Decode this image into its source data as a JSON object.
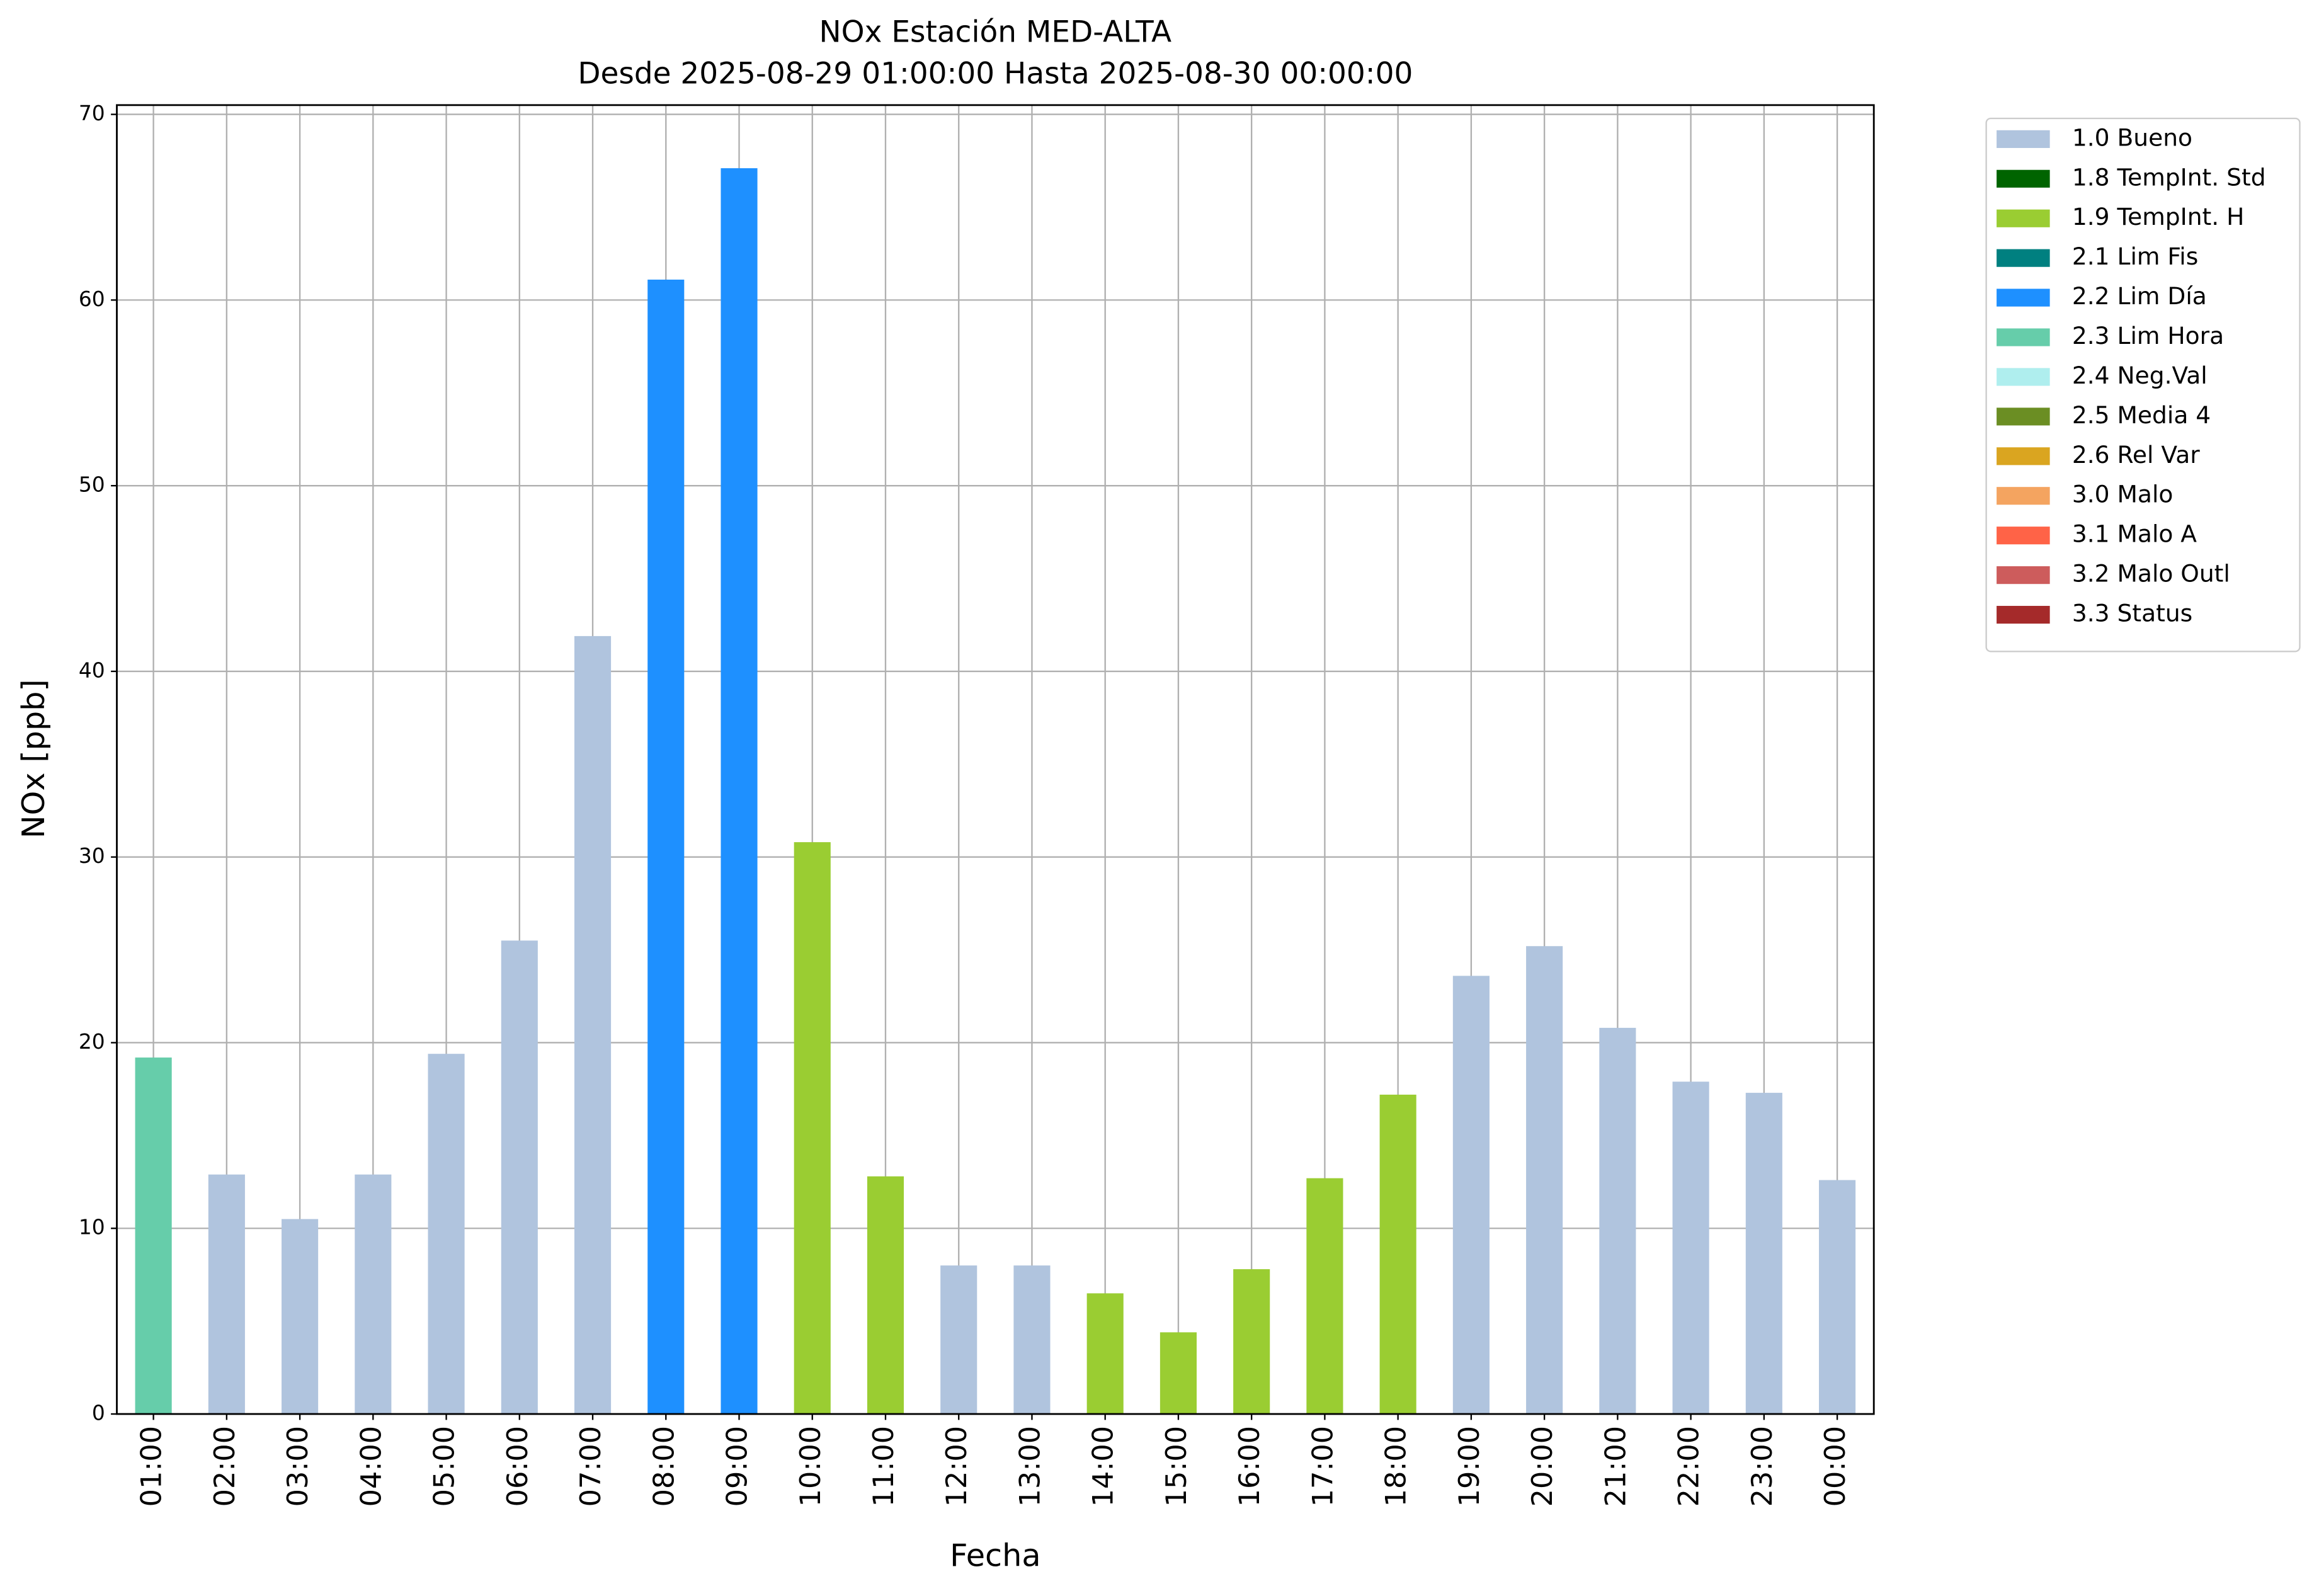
{
  "chart_data": {
    "type": "bar",
    "stacked": true,
    "title": "NOx Estación MED-ALTA",
    "subtitle": "Desde 2025-08-29 01:00:00 Hasta 2025-08-30 00:00:00",
    "xlabel": "Fecha",
    "ylabel": "NOx [ppb]",
    "categories": [
      "01:00",
      "02:00",
      "03:00",
      "04:00",
      "05:00",
      "06:00",
      "07:00",
      "08:00",
      "09:00",
      "10:00",
      "11:00",
      "12:00",
      "13:00",
      "14:00",
      "15:00",
      "16:00",
      "17:00",
      "18:00",
      "19:00",
      "20:00",
      "21:00",
      "22:00",
      "23:00",
      "00:00"
    ],
    "series": [
      {
        "name": "1.0 Bueno",
        "color": "#b0c4de",
        "values": [
          null,
          12.9,
          10.5,
          12.9,
          19.4,
          25.5,
          41.9,
          null,
          null,
          null,
          null,
          8.0,
          8.0,
          null,
          null,
          null,
          null,
          null,
          23.6,
          25.2,
          20.8,
          17.9,
          17.3,
          12.6
        ]
      },
      {
        "name": "1.8 TempInt. Std",
        "color": "#006400",
        "values": [
          null,
          null,
          null,
          null,
          null,
          null,
          null,
          null,
          null,
          null,
          null,
          null,
          null,
          null,
          null,
          null,
          null,
          null,
          null,
          null,
          null,
          null,
          null,
          null
        ]
      },
      {
        "name": "1.9 TempInt. H",
        "color": "#9acd32",
        "values": [
          null,
          null,
          null,
          null,
          null,
          null,
          null,
          null,
          null,
          30.8,
          12.8,
          null,
          null,
          6.5,
          4.4,
          7.8,
          12.7,
          17.2,
          null,
          null,
          null,
          null,
          null,
          null
        ]
      },
      {
        "name": "2.1 Lim Fis",
        "color": "#008080",
        "values": [
          null,
          null,
          null,
          null,
          null,
          null,
          null,
          null,
          null,
          null,
          null,
          null,
          null,
          null,
          null,
          null,
          null,
          null,
          null,
          null,
          null,
          null,
          null,
          null
        ]
      },
      {
        "name": "2.2 Lim Día",
        "color": "#1e90ff",
        "values": [
          null,
          null,
          null,
          null,
          null,
          null,
          null,
          61.1,
          67.1,
          null,
          null,
          null,
          null,
          null,
          null,
          null,
          null,
          null,
          null,
          null,
          null,
          null,
          null,
          null
        ]
      },
      {
        "name": "2.3 Lim Hora",
        "color": "#66cdaa",
        "values": [
          19.2,
          null,
          null,
          null,
          null,
          null,
          null,
          null,
          null,
          null,
          null,
          null,
          null,
          null,
          null,
          null,
          null,
          null,
          null,
          null,
          null,
          null,
          null,
          null
        ]
      },
      {
        "name": "2.4 Neg.Val",
        "color": "#afeeee",
        "values": [
          null,
          null,
          null,
          null,
          null,
          null,
          null,
          null,
          null,
          null,
          null,
          null,
          null,
          null,
          null,
          null,
          null,
          null,
          null,
          null,
          null,
          null,
          null,
          null
        ]
      },
      {
        "name": "2.5 Media 4",
        "color": "#6b8e23",
        "values": [
          null,
          null,
          null,
          null,
          null,
          null,
          null,
          null,
          null,
          null,
          null,
          null,
          null,
          null,
          null,
          null,
          null,
          null,
          null,
          null,
          null,
          null,
          null,
          null
        ]
      },
      {
        "name": "2.6 Rel Var",
        "color": "#daa520",
        "values": [
          null,
          null,
          null,
          null,
          null,
          null,
          null,
          null,
          null,
          null,
          null,
          null,
          null,
          null,
          null,
          null,
          null,
          null,
          null,
          null,
          null,
          null,
          null,
          null
        ]
      },
      {
        "name": "3.0 Malo",
        "color": "#f4a460",
        "values": [
          null,
          null,
          null,
          null,
          null,
          null,
          null,
          null,
          null,
          null,
          null,
          null,
          null,
          null,
          null,
          null,
          null,
          null,
          null,
          null,
          null,
          null,
          null,
          null
        ]
      },
      {
        "name": "3.1 Malo A",
        "color": "#ff6347",
        "values": [
          null,
          null,
          null,
          null,
          null,
          null,
          null,
          null,
          null,
          null,
          null,
          null,
          null,
          null,
          null,
          null,
          null,
          null,
          null,
          null,
          null,
          null,
          null,
          null
        ]
      },
      {
        "name": "3.2 Malo Outl",
        "color": "#cd5c5c",
        "values": [
          null,
          null,
          null,
          null,
          null,
          null,
          null,
          null,
          null,
          null,
          null,
          null,
          null,
          null,
          null,
          null,
          null,
          null,
          null,
          null,
          null,
          null,
          null,
          null
        ]
      },
      {
        "name": "3.3 Status",
        "color": "#a52a2a",
        "values": [
          null,
          null,
          null,
          null,
          null,
          null,
          null,
          null,
          null,
          null,
          null,
          null,
          null,
          null,
          null,
          null,
          null,
          null,
          null,
          null,
          null,
          null,
          null,
          null
        ]
      }
    ],
    "ylim": [
      0,
      70.5
    ],
    "yticks": [
      0,
      10,
      20,
      30,
      40,
      50,
      60,
      70
    ],
    "grid": true,
    "legend": "outside-right"
  }
}
